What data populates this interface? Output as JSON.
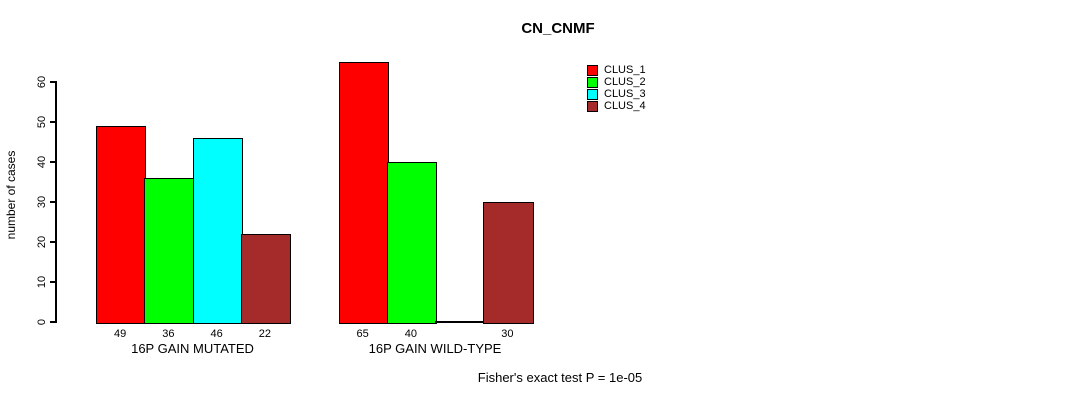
{
  "chart_data": {
    "type": "bar",
    "title": "CN_CNMF",
    "xlabel": "",
    "ylabel": "number of cases",
    "ylim": [
      0,
      65
    ],
    "yticks": [
      0,
      10,
      20,
      30,
      40,
      50,
      60
    ],
    "grid": false,
    "legend_position": "right-of-plot",
    "categories": [
      "16P GAIN MUTATED",
      "16P GAIN WILD-TYPE"
    ],
    "series": [
      {
        "name": "CLUS_1",
        "color": "#FF0000",
        "values": [
          49,
          65
        ]
      },
      {
        "name": "CLUS_2",
        "color": "#00FF00",
        "values": [
          36,
          40
        ]
      },
      {
        "name": "CLUS_3",
        "color": "#00FFFF",
        "values": [
          46,
          0
        ]
      },
      {
        "name": "CLUS_4",
        "color": "#A52A2A",
        "values": [
          22,
          30
        ]
      }
    ],
    "bar_value_labels": {
      "16P GAIN MUTATED": [
        49,
        36,
        46,
        22
      ],
      "16P GAIN WILD-TYPE": [
        65,
        40,
        null,
        30
      ],
      "note": "values shown under each positive bar; zero-height bars have no label"
    },
    "footnote": "Fisher's exact test P = 1e-05"
  }
}
